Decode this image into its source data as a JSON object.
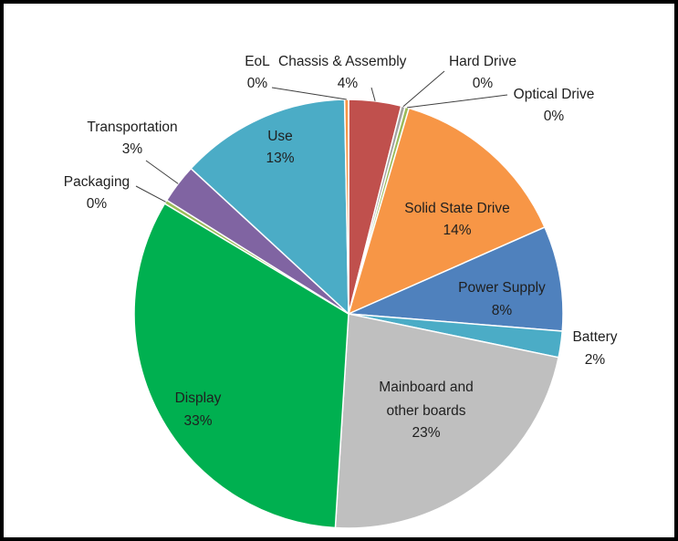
{
  "chart_data": {
    "type": "pie",
    "title": "",
    "slices": [
      {
        "label": "Chassis & Assembly",
        "value": 4,
        "pct_label": "4%",
        "color": "#c0504d"
      },
      {
        "label": "Hard Drive",
        "value": 0,
        "pct_label": "0%",
        "color": "#a3a3a3"
      },
      {
        "label": "Optical Drive",
        "value": 0,
        "pct_label": "0%",
        "color": "#9bbb59"
      },
      {
        "label": "Solid State Drive",
        "value": 14,
        "pct_label": "14%",
        "color": "#f79646"
      },
      {
        "label": "Power Supply",
        "value": 8,
        "pct_label": "8%",
        "color": "#4f81bd"
      },
      {
        "label": "Battery",
        "value": 2,
        "pct_label": "2%",
        "color": "#4bacc6"
      },
      {
        "label": "Mainboard and other boards",
        "value": 23,
        "pct_label": "23%",
        "color": "#bfbfbf"
      },
      {
        "label": "Display",
        "value": 33,
        "pct_label": "33%",
        "color": "#00b050"
      },
      {
        "label": "Packaging",
        "value": 0,
        "pct_label": "0%",
        "color": "#9bbb59"
      },
      {
        "label": "Transportation",
        "value": 3,
        "pct_label": "3%",
        "color": "#8064a2"
      },
      {
        "label": "Use",
        "value": 13,
        "pct_label": "13%",
        "color": "#4bacc6"
      },
      {
        "label": "EoL",
        "value": 0,
        "pct_label": "0%",
        "color": "#f79646"
      }
    ]
  }
}
